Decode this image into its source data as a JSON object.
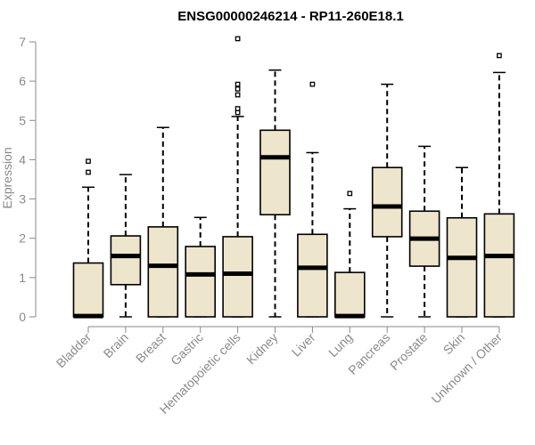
{
  "chart_data": {
    "type": "boxplot",
    "title": "ENSG00000246214 - RP11-260E18.1",
    "ylabel": "Expression",
    "xlabel": "",
    "ylim": [
      0,
      7
    ],
    "yticks": [
      0,
      1,
      2,
      3,
      4,
      5,
      6,
      7
    ],
    "box_fill": "#ede6cc",
    "categories": [
      "Bladder",
      "Brain",
      "Breast",
      "Gastric",
      "Hematopoietic cells",
      "Kidney",
      "Liver",
      "Lung",
      "Pancreas",
      "Prostate",
      "Skin",
      "Unknown / Other"
    ],
    "boxes": [
      {
        "name": "Bladder",
        "min": 0,
        "q1": 0,
        "median": 0.02,
        "q3": 1.37,
        "max": 3.3,
        "outliers": [
          3.68,
          3.96
        ]
      },
      {
        "name": "Brain",
        "min": 0,
        "q1": 0.82,
        "median": 1.55,
        "q3": 2.06,
        "max": 3.62,
        "outliers": []
      },
      {
        "name": "Breast",
        "min": 0,
        "q1": 0,
        "median": 1.3,
        "q3": 2.29,
        "max": 4.82,
        "outliers": []
      },
      {
        "name": "Gastric",
        "min": 0,
        "q1": 0,
        "median": 1.08,
        "q3": 1.79,
        "max": 2.53,
        "outliers": []
      },
      {
        "name": "Hematopoietic cells",
        "min": 0,
        "q1": 0,
        "median": 1.1,
        "q3": 2.04,
        "max": 5.1,
        "outliers": [
          5.2,
          5.3,
          5.65,
          5.8,
          5.92,
          7.08
        ]
      },
      {
        "name": "Kidney",
        "min": 0,
        "q1": 2.6,
        "median": 4.06,
        "q3": 4.75,
        "max": 6.28,
        "outliers": []
      },
      {
        "name": "Liver",
        "min": 0,
        "q1": 0,
        "median": 1.25,
        "q3": 2.1,
        "max": 4.18,
        "outliers": [
          5.92
        ]
      },
      {
        "name": "Lung",
        "min": 0,
        "q1": 0,
        "median": 0.02,
        "q3": 1.13,
        "max": 2.75,
        "outliers": [
          3.14
        ]
      },
      {
        "name": "Pancreas",
        "min": 0,
        "q1": 2.04,
        "median": 2.81,
        "q3": 3.8,
        "max": 5.92,
        "outliers": []
      },
      {
        "name": "Prostate",
        "min": 0,
        "q1": 1.29,
        "median": 1.99,
        "q3": 2.69,
        "max": 4.34,
        "outliers": []
      },
      {
        "name": "Skin",
        "min": 0,
        "q1": 0,
        "median": 1.5,
        "q3": 2.52,
        "max": 3.8,
        "outliers": []
      },
      {
        "name": "Unknown / Other",
        "min": 0,
        "q1": 0,
        "median": 1.55,
        "q3": 2.62,
        "max": 6.22,
        "outliers": [
          6.65
        ]
      }
    ]
  }
}
